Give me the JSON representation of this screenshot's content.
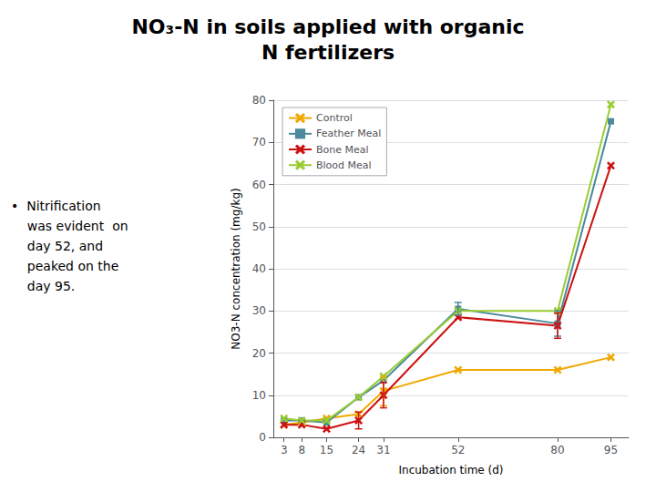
{
  "chart_data": {
    "type": "line",
    "title": "NO₃-N in soils applied with organic\nN fertilizers",
    "annotation": "•  Nitrification\n    was evident  on\n    day 52, and\n    peaked on the\n    day 95.",
    "xlabel": "Incubation time (d)",
    "ylabel": "NO3-N concentration (mg/kg)",
    "x": [
      3,
      8,
      15,
      24,
      31,
      52,
      80,
      95
    ],
    "series": [
      {
        "name": "Control",
        "color": "#f0a800",
        "marker": "x",
        "values": [
          3.0,
          3.5,
          4.5,
          5.5,
          11.0,
          16.0,
          16.0,
          19.0
        ],
        "errors": [
          null,
          null,
          null,
          null,
          3.5,
          null,
          null,
          null
        ]
      },
      {
        "name": "Feather Meal",
        "color": "#4a8a9a",
        "marker": "square",
        "values": [
          4.0,
          4.0,
          3.5,
          9.5,
          13.5,
          30.5,
          27.0,
          75.0
        ],
        "errors": [
          null,
          null,
          null,
          null,
          null,
          1.5,
          3,
          null
        ]
      },
      {
        "name": "Bone Meal",
        "color": "#cc1111",
        "marker": "x",
        "values": [
          3.0,
          3.0,
          2.0,
          4.0,
          10.0,
          28.5,
          26.5,
          64.5
        ],
        "errors": [
          null,
          null,
          null,
          2.0,
          3.0,
          null,
          3,
          null
        ]
      },
      {
        "name": "Blood Meal",
        "color": "#99cc33",
        "marker": "x",
        "values": [
          4.5,
          4.0,
          4.0,
          9.5,
          14.5,
          30.0,
          30.0,
          79.0
        ]
      }
    ],
    "xlim": [
      0,
      100
    ],
    "xticks": [
      3,
      8,
      15,
      24,
      31,
      52,
      80,
      95
    ],
    "ylim": [
      0,
      80
    ],
    "yticks": [
      0,
      10,
      20,
      30,
      40,
      50,
      60,
      70,
      80
    ],
    "grid": true,
    "legend": "upper left"
  }
}
